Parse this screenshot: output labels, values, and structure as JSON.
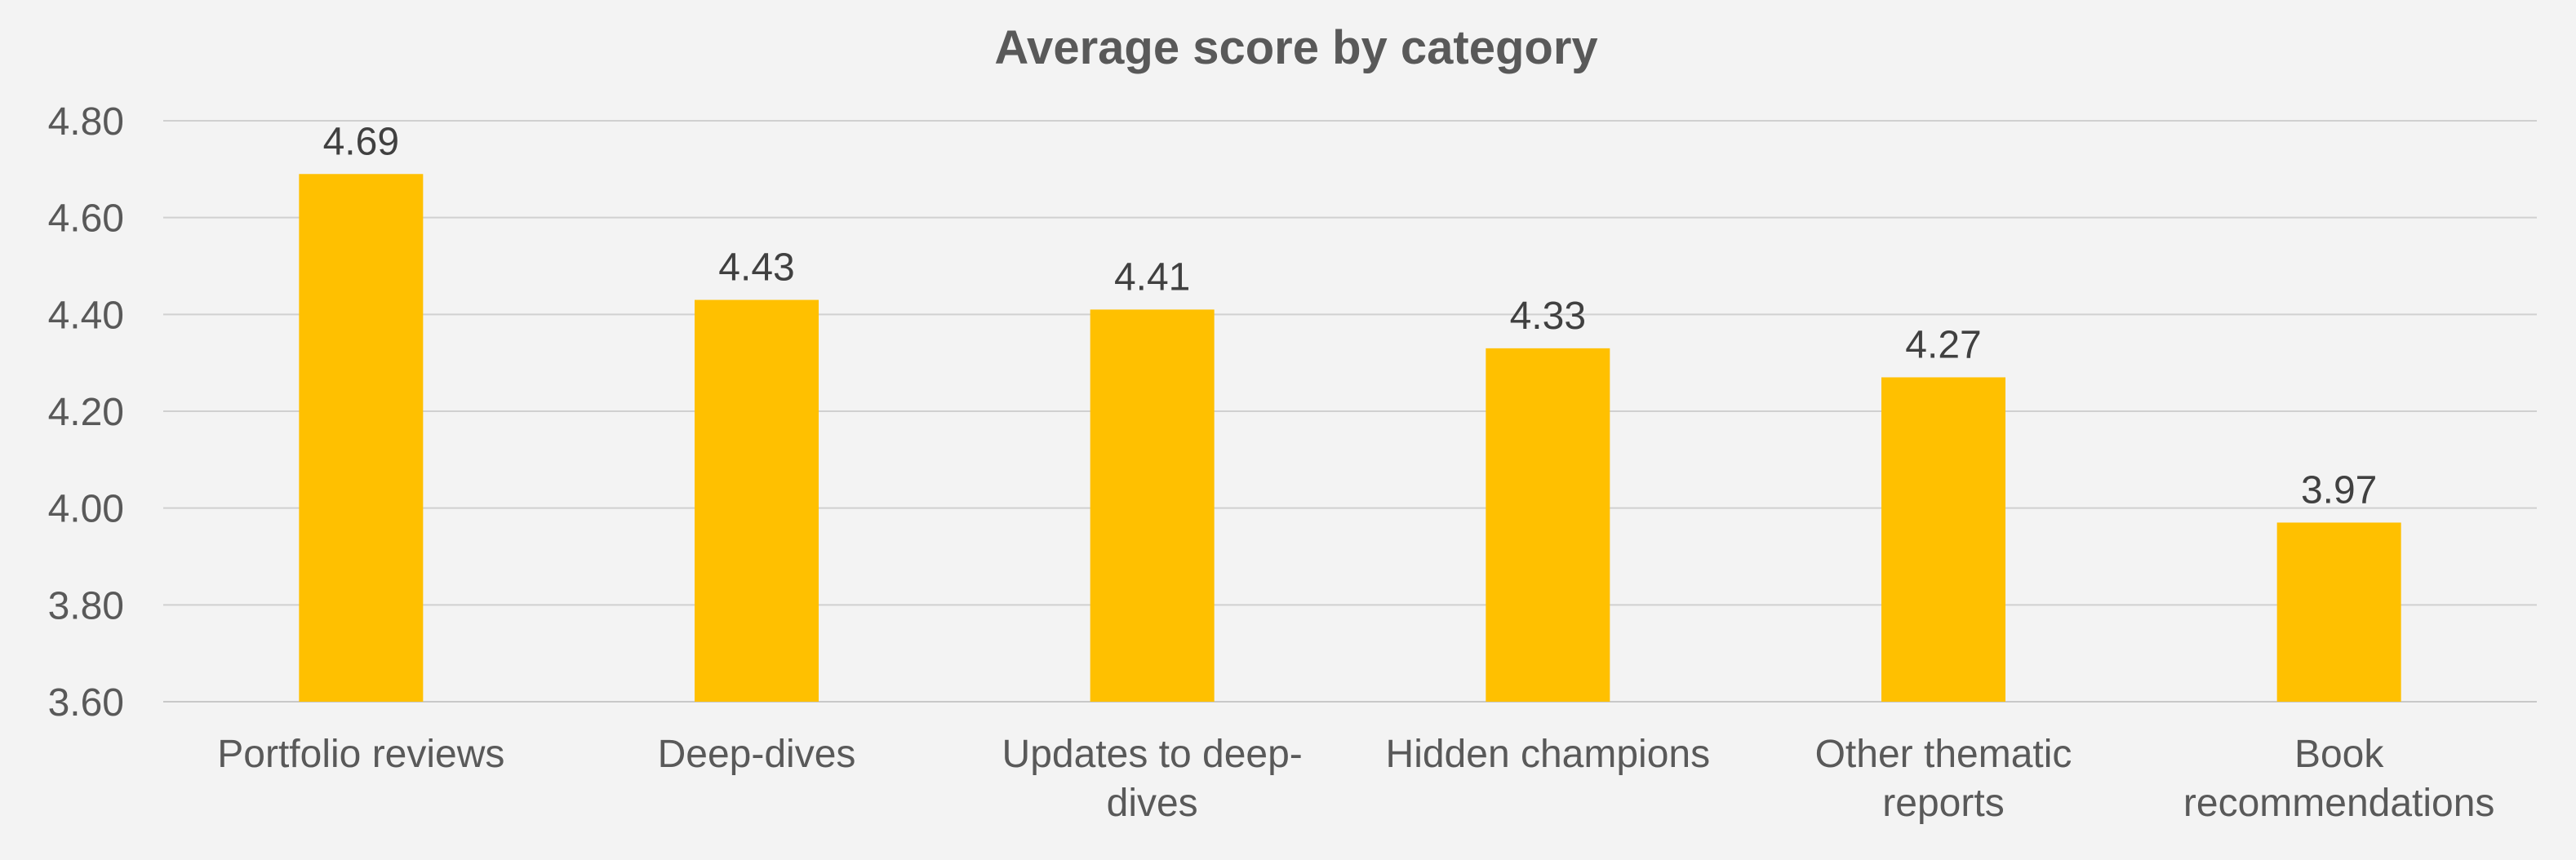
{
  "chart_data": {
    "type": "bar",
    "title": "Average score by category",
    "categories": [
      "Portfolio reviews",
      "Deep-dives",
      "Updates to deep-dives",
      "Hidden champions",
      "Other thematic reports",
      "Book recommendations"
    ],
    "category_lines": [
      [
        "Portfolio reviews"
      ],
      [
        "Deep-dives"
      ],
      [
        "Updates to deep-",
        "dives"
      ],
      [
        "Hidden champions"
      ],
      [
        "Other thematic",
        "reports"
      ],
      [
        "Book",
        "recommendations"
      ]
    ],
    "values": [
      4.69,
      4.43,
      4.41,
      4.33,
      4.27,
      3.97
    ],
    "data_labels": [
      "4.69",
      "4.43",
      "4.41",
      "4.33",
      "4.27",
      "3.97"
    ],
    "ylim": [
      3.6,
      4.8
    ],
    "yticks": [
      "3.60",
      "3.80",
      "4.00",
      "4.20",
      "4.40",
      "4.60",
      "4.80"
    ],
    "xlabel": "",
    "ylabel": "",
    "grid": true,
    "legend": "none",
    "colors": {
      "bar": "#ffc000",
      "background": "#f3f3f3"
    }
  }
}
